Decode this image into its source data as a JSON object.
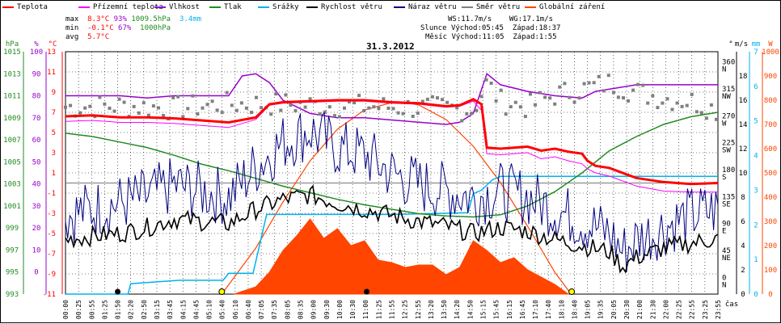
{
  "legend": [
    {
      "label": "Teplota",
      "color": "#ff0000"
    },
    {
      "label": "Přízemní teplota",
      "color": "#ff00ff"
    },
    {
      "label": "Vlhkost",
      "color": "#9900cc"
    },
    {
      "label": "Tlak",
      "color": "#228b22"
    },
    {
      "label": "Srážky",
      "color": "#00b2ee"
    },
    {
      "label": "Rychlost větru",
      "color": "#000000"
    },
    {
      "label": "Náraz větru",
      "color": "#000080"
    },
    {
      "label": "Směr větru",
      "color": "#808080"
    },
    {
      "label": "Globální záření",
      "color": "#ff4500"
    }
  ],
  "stats": {
    "max_label": "max",
    "max_t": "8.3°C",
    "max_h": "93%",
    "max_p": "1009.5hPa",
    "rain": "3.4mm",
    "min_label": "min",
    "min_t": "-0.1°C",
    "min_h": "67%",
    "min_p": "1000hPa",
    "avg_label": "avg",
    "avg_t": "5.7°C"
  },
  "info": {
    "ws": "WS:11.7m/s",
    "wg": "WG:17.1m/s",
    "sun_label": "Slunce",
    "sun_rise": "Východ:05:45",
    "sun_set": "Západ:18:37",
    "moon_label": "Měsíc",
    "moon_rise": "Východ:11:05",
    "moon_set": "Západ:1:55"
  },
  "chart_data": {
    "type": "line",
    "title": "31.3.2012",
    "x_label": "čas",
    "x_ticks": [
      "00:00",
      "00:25",
      "00:55",
      "01:25",
      "01:50",
      "02:20",
      "02:50",
      "03:15",
      "03:45",
      "04:15",
      "04:45",
      "05:10",
      "05:40",
      "06:10",
      "06:40",
      "07:05",
      "07:35",
      "08:05",
      "08:35",
      "09:00",
      "09:30",
      "10:00",
      "10:30",
      "11:00",
      "11:25",
      "11:55",
      "12:25",
      "12:55",
      "13:20",
      "13:50",
      "14:20",
      "14:50",
      "15:15",
      "15:45",
      "16:15",
      "16:45",
      "17:10",
      "17:40",
      "18:10",
      "18:40",
      "19:05",
      "19:35",
      "20:05",
      "20:30",
      "21:00",
      "21:30",
      "22:00",
      "22:25",
      "22:55",
      "23:25",
      "23:55"
    ],
    "axes": {
      "hPa": {
        "label": "hPa",
        "color": "#228b22",
        "ticks": [
          993,
          995,
          997,
          999,
          1001,
          1003,
          1005,
          1007,
          1009,
          1011,
          1013,
          1015
        ]
      },
      "pct": {
        "label": "%",
        "color": "#9900cc",
        "ticks": [
          0,
          10,
          20,
          30,
          40,
          50,
          60,
          70,
          80,
          90,
          100
        ]
      },
      "degC": {
        "label": "°C",
        "color": "#ff0000",
        "ticks": [
          -11,
          -9,
          -7,
          -5,
          -3,
          -1,
          1,
          3,
          5,
          7,
          9,
          11,
          13
        ]
      },
      "dir": {
        "label": "°",
        "color": "#000000",
        "ticks": [
          {
            "v": "0",
            "d": "N"
          },
          {
            "v": "45",
            "d": "NE"
          },
          {
            "v": "90",
            "d": "E"
          },
          {
            "v": "135",
            "d": "SE"
          },
          {
            "v": "180",
            "d": "S"
          },
          {
            "v": "225",
            "d": "SW"
          },
          {
            "v": "270",
            "d": "W"
          },
          {
            "v": "315",
            "d": "NW"
          },
          {
            "v": "360",
            "d": "N"
          }
        ]
      },
      "ms": {
        "label": "m/s",
        "color": "#000000",
        "ticks": [
          0,
          2,
          4,
          6,
          8,
          10,
          12,
          14,
          16,
          18
        ]
      },
      "mm": {
        "label": "mm",
        "color": "#00b2ee",
        "ticks": [
          0,
          1,
          2,
          3,
          4,
          5,
          6,
          7
        ]
      },
      "wm2": {
        "label": "W",
        "color": "#ff4500",
        "ticks": [
          0,
          100,
          200,
          300,
          400,
          500,
          600,
          700,
          800,
          900,
          1000
        ]
      }
    },
    "series": [
      {
        "name": "Teplota",
        "unit": "°C",
        "color": "#ff0000",
        "x": [
          0,
          1,
          2,
          3,
          4,
          5,
          6,
          7,
          7.5,
          8,
          9,
          10,
          11,
          12,
          13,
          14,
          14.5,
          15,
          15.3,
          15.5,
          16,
          17,
          17.5,
          18,
          18.5,
          19,
          19.2,
          19.5,
          20,
          21,
          22,
          23,
          24
        ],
        "values": [
          6.6,
          6.7,
          6.5,
          6.5,
          6.4,
          6.2,
          6.0,
          6.5,
          7.8,
          8.0,
          8.1,
          8.2,
          8.2,
          8.0,
          7.9,
          7.6,
          7.7,
          8.3,
          7.8,
          3.5,
          3.4,
          3.6,
          3.2,
          3.4,
          3.1,
          2.9,
          2.2,
          1.7,
          1.5,
          0.5,
          0.1,
          -0.1,
          0
        ]
      },
      {
        "name": "Přízemní teplota",
        "unit": "°C",
        "color": "#ff00ff",
        "x": [
          0,
          1,
          2,
          3,
          4,
          5,
          6,
          7,
          7.5,
          8,
          9,
          10,
          11,
          12,
          13,
          14,
          14.5,
          15,
          15.3,
          15.5,
          16,
          17,
          17.5,
          18,
          18.5,
          19,
          19.2,
          19.5,
          20,
          21,
          22,
          23,
          24
        ],
        "values": [
          6.1,
          6.2,
          6.0,
          6.0,
          5.9,
          5.7,
          5.5,
          6.3,
          7.7,
          7.9,
          8.0,
          8.1,
          8.1,
          7.9,
          7.8,
          7.5,
          7.6,
          8.1,
          7.2,
          2.9,
          2.8,
          3.0,
          2.4,
          2.6,
          2.2,
          1.9,
          1.4,
          1.0,
          0.7,
          -0.3,
          -0.8,
          -0.9,
          -0.9
        ]
      },
      {
        "name": "Vlhkost",
        "unit": "%",
        "color": "#9900cc",
        "x": [
          0,
          1,
          2,
          3,
          4,
          5,
          6,
          6.5,
          7,
          7.5,
          8,
          8.5,
          9,
          10,
          11,
          12,
          13,
          14,
          14.5,
          15,
          15.5,
          16,
          17,
          18,
          19,
          19.5,
          20,
          21,
          22,
          23,
          24
        ],
        "values": [
          80,
          80,
          80,
          79,
          80,
          80,
          80,
          89,
          90,
          86,
          78,
          75,
          72,
          70,
          70,
          69,
          68,
          67,
          68,
          72,
          90,
          85,
          82,
          80,
          79,
          82,
          83,
          85,
          85,
          85,
          85
        ]
      },
      {
        "name": "Tlak",
        "unit": "hPa",
        "color": "#228b22",
        "x": [
          0,
          1,
          2,
          3,
          4,
          5,
          6,
          7,
          8,
          9,
          10,
          11,
          12,
          13,
          14,
          15,
          16,
          17,
          18,
          19,
          20,
          21,
          22,
          23,
          24
        ],
        "values": [
          1007.6,
          1007.3,
          1006.8,
          1006.3,
          1005.6,
          1004.8,
          1004.2,
          1003.5,
          1002.8,
          1002.2,
          1001.6,
          1001.1,
          1000.7,
          1000.3,
          1000.1,
          1000,
          1000.2,
          1001,
          1002.3,
          1004,
          1006,
          1007.3,
          1008.4,
          1009.1,
          1009.5
        ]
      },
      {
        "name": "Srážky",
        "unit": "mm",
        "color": "#00b2ee",
        "x": [
          0,
          2.3,
          2.4,
          4.2,
          5.8,
          6.0,
          6.9,
          7.4,
          12.0,
          14.8,
          15.0,
          15.3,
          15.7,
          16.0,
          18.0,
          22.0,
          24.0
        ],
        "values": [
          0,
          0,
          0.3,
          0.4,
          0.4,
          0.6,
          0.6,
          2.3,
          2.3,
          2.35,
          2.9,
          3.0,
          3.3,
          3.4,
          3.4,
          3.4,
          3.4
        ]
      },
      {
        "name": "Rychlost větru",
        "unit": "m/s",
        "color": "#000000",
        "x": [
          0,
          1,
          2,
          3,
          4,
          5,
          6,
          7,
          8,
          9,
          10,
          11,
          12,
          13,
          14,
          15,
          16,
          17,
          18,
          19,
          20,
          20.5,
          21,
          22,
          23,
          24
        ],
        "values": [
          4.5,
          4.8,
          5.0,
          5.5,
          6.2,
          6.0,
          5.8,
          7.0,
          7.8,
          8.2,
          7.5,
          7.0,
          6.5,
          6.0,
          5.6,
          5.0,
          5.5,
          5.2,
          4.5,
          4.0,
          3.5,
          2.3,
          3.0,
          3.8,
          4.2,
          4.6
        ]
      },
      {
        "name": "Náraz větru",
        "unit": "m/s",
        "color": "#000080",
        "x": [
          0,
          1,
          2,
          3,
          4,
          5,
          6,
          7,
          8,
          9,
          10,
          11,
          12,
          13,
          14,
          15,
          16,
          17,
          18,
          19,
          20,
          20.5,
          21,
          22,
          23,
          24
        ],
        "values": [
          6.5,
          7.0,
          7.5,
          8.0,
          9.0,
          8.5,
          8.0,
          10.5,
          12.5,
          13.5,
          12.0,
          11.5,
          10.0,
          9.0,
          8.5,
          8.0,
          8.5,
          8.0,
          7.0,
          6.0,
          5.0,
          3.5,
          4.5,
          5.5,
          6.5,
          7.0
        ]
      },
      {
        "name": "Směr větru",
        "unit": "°",
        "color": "#808080",
        "x": [
          0,
          2,
          4,
          6,
          8,
          10,
          12,
          14,
          15,
          15.5,
          16,
          17,
          18,
          19,
          20,
          21,
          22,
          23,
          24
        ],
        "values": [
          290,
          292,
          288,
          295,
          295,
          292,
          290,
          288,
          285,
          330,
          300,
          290,
          310,
          320,
          330,
          315,
          305,
          300,
          285
        ]
      },
      {
        "name": "Globální záření",
        "unit": "W/m²",
        "color": "#ff4500",
        "x": [
          6.2,
          7.0,
          7.5,
          8.0,
          8.5,
          9.0,
          9.5,
          10.0,
          10.5,
          11.0,
          11.5,
          12.0,
          12.5,
          13.0,
          13.5,
          14.0,
          14.5,
          15.0,
          15.5,
          16.0,
          16.5,
          17.0,
          17.5,
          18.0,
          18.5
        ],
        "values": [
          0,
          30,
          90,
          180,
          240,
          310,
          230,
          270,
          200,
          220,
          140,
          130,
          110,
          120,
          120,
          80,
          110,
          220,
          180,
          130,
          150,
          100,
          70,
          40,
          0
        ]
      },
      {
        "name": "clear-sky",
        "unit": "W/m²",
        "color": "#ff4500",
        "x": [
          5.75,
          7,
          8,
          9,
          10,
          11,
          12,
          12.5,
          13,
          14,
          15,
          16,
          17,
          18,
          18.6
        ],
        "values": [
          0,
          190,
          380,
          550,
          680,
          760,
          790,
          790,
          780,
          720,
          610,
          460,
          280,
          90,
          0
        ]
      }
    ]
  }
}
